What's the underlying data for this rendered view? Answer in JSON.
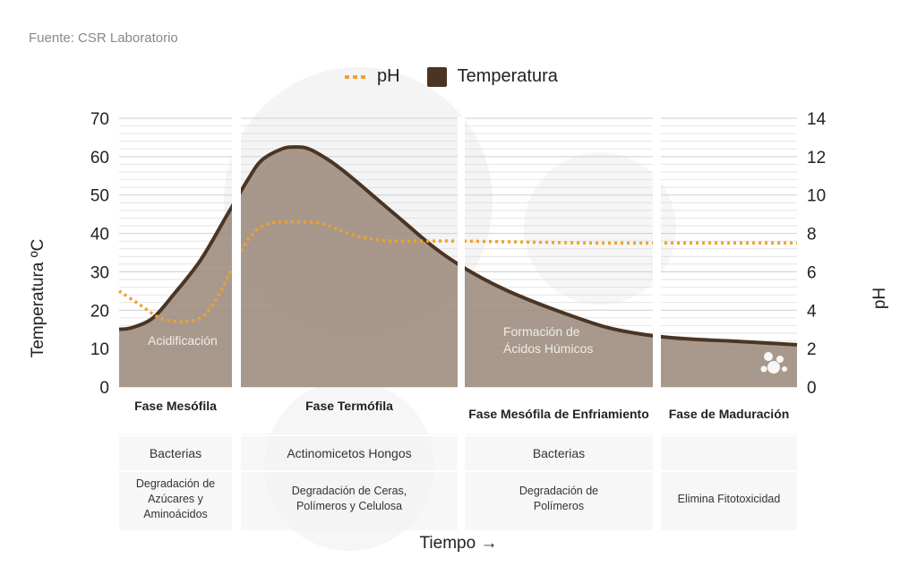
{
  "source": "Fuente: CSR Laboratorio",
  "colors": {
    "temperature": "#4a3524",
    "temperature_fill": "#9c8b7c",
    "ph": "#f0a12c",
    "grid": "#d9d9d9"
  },
  "chart_data": {
    "type": "area",
    "xlabel": "Tiempo →",
    "ylabel_left": "Temperatura ºC",
    "ylabel_right": "pH",
    "ylim_left": [
      0,
      70
    ],
    "ylim_right": [
      0,
      14
    ],
    "yticks_left": [
      "0",
      "10",
      "20",
      "30",
      "40",
      "50",
      "60",
      "70"
    ],
    "yticks_right": [
      "0",
      "2",
      "4",
      "6",
      "8",
      "10",
      "12",
      "14"
    ],
    "grid": true,
    "legend": {
      "position": "top-center",
      "entries": [
        "pH",
        "Temperatura"
      ]
    },
    "series": [
      {
        "name": "Temperatura",
        "axis": "left",
        "x": [
          0,
          2,
          5,
          8,
          12,
          16,
          19,
          21,
          24,
          26,
          28,
          31,
          34,
          38,
          42,
          46,
          50,
          55,
          60,
          66,
          72,
          78,
          84,
          90,
          95,
          100
        ],
        "values": [
          15,
          15.5,
          18,
          24,
          33,
          45,
          54,
          59,
          62,
          62.5,
          62,
          59,
          55,
          49,
          43,
          37,
          32,
          27,
          23,
          19,
          15.5,
          13.5,
          12.5,
          12,
          11.5,
          11
        ]
      },
      {
        "name": "pH",
        "axis": "right",
        "x": [
          0,
          3,
          6,
          9,
          12,
          14,
          16,
          18,
          20,
          22,
          24,
          27,
          30,
          33,
          36,
          40,
          45,
          50,
          60,
          70,
          80,
          90,
          100
        ],
        "values": [
          5,
          4.3,
          3.6,
          3.4,
          3.6,
          4.4,
          5.7,
          7.1,
          8.1,
          8.5,
          8.6,
          8.6,
          8.5,
          8.1,
          7.8,
          7.6,
          7.6,
          7.6,
          7.55,
          7.5,
          7.5,
          7.5,
          7.5
        ]
      }
    ],
    "phases": [
      {
        "name": "Fase Mesófila",
        "organisms": "Bacterias",
        "process": "Degradación de Azúcares y Aminoácidos",
        "annotation": "Acidificación"
      },
      {
        "name": "Fase Termófila",
        "organisms": "Actinomicetos Hongos",
        "process": "Degradación de Ceras, Polímeros y Celulosa",
        "annotation": ""
      },
      {
        "name": "Fase Mesófila de Enfriamiento",
        "organisms": "Bacterias",
        "process": "Degradación de Polímeros",
        "annotation": "Formación de Ácidos Húmicos"
      },
      {
        "name": "Fase de Maduración",
        "organisms": "",
        "process": "Elimina Fitotoxicidad",
        "annotation": ""
      }
    ]
  }
}
